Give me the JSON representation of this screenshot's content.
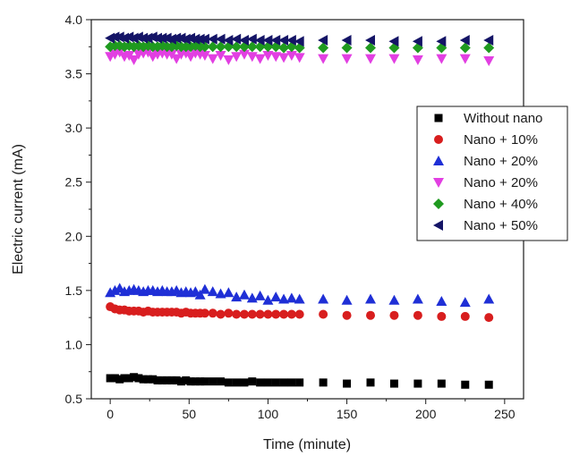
{
  "chart_data": {
    "type": "scatter",
    "xlabel": "Time (minute)",
    "ylabel": "Electric current (mA)",
    "xlim": [
      -12,
      262
    ],
    "ylim": [
      0.5,
      4.0
    ],
    "xticks": [
      0,
      50,
      100,
      150,
      200,
      250
    ],
    "yticks": [
      0.5,
      1.0,
      1.5,
      2.0,
      2.5,
      3.0,
      3.5,
      4.0
    ],
    "xtick_labels": [
      "0",
      "50",
      "100",
      "150",
      "200",
      "250"
    ],
    "ytick_labels": [
      "0.5",
      "1.0",
      "1.5",
      "2.0",
      "2.5",
      "3.0",
      "3.5",
      "4.0"
    ],
    "grid": false,
    "legend_position": "right",
    "series": [
      {
        "name": "Without nano",
        "marker": "square",
        "color": "#000000",
        "x": [
          0,
          3,
          6,
          9,
          12,
          15,
          18,
          21,
          24,
          27,
          30,
          33,
          36,
          39,
          42,
          45,
          48,
          51,
          54,
          57,
          60,
          65,
          70,
          75,
          80,
          85,
          90,
          95,
          100,
          105,
          110,
          115,
          120,
          135,
          150,
          165,
          180,
          195,
          210,
          225,
          240
        ],
        "y": [
          0.69,
          0.69,
          0.68,
          0.69,
          0.69,
          0.7,
          0.69,
          0.68,
          0.68,
          0.68,
          0.67,
          0.67,
          0.67,
          0.67,
          0.67,
          0.66,
          0.67,
          0.66,
          0.66,
          0.66,
          0.66,
          0.66,
          0.66,
          0.65,
          0.65,
          0.65,
          0.66,
          0.65,
          0.65,
          0.65,
          0.65,
          0.65,
          0.65,
          0.65,
          0.64,
          0.65,
          0.64,
          0.64,
          0.64,
          0.63,
          0.63
        ]
      },
      {
        "name": "Nano + 10%",
        "marker": "circle",
        "color": "#d81e1e",
        "x": [
          0,
          3,
          6,
          9,
          12,
          15,
          18,
          21,
          24,
          27,
          30,
          33,
          36,
          39,
          42,
          45,
          48,
          51,
          54,
          57,
          60,
          65,
          70,
          75,
          80,
          85,
          90,
          95,
          100,
          105,
          110,
          115,
          120,
          135,
          150,
          165,
          180,
          195,
          210,
          225,
          240
        ],
        "y": [
          1.35,
          1.33,
          1.32,
          1.32,
          1.31,
          1.31,
          1.31,
          1.3,
          1.31,
          1.3,
          1.3,
          1.3,
          1.3,
          1.3,
          1.3,
          1.29,
          1.3,
          1.29,
          1.29,
          1.29,
          1.29,
          1.29,
          1.28,
          1.29,
          1.28,
          1.28,
          1.28,
          1.28,
          1.28,
          1.28,
          1.28,
          1.28,
          1.28,
          1.28,
          1.27,
          1.27,
          1.27,
          1.27,
          1.26,
          1.26,
          1.25
        ]
      },
      {
        "name": "Nano + 20%",
        "marker": "triangle-up",
        "color": "#1f2fd6",
        "x": [
          0,
          3,
          6,
          9,
          12,
          15,
          18,
          21,
          24,
          27,
          30,
          33,
          36,
          39,
          42,
          45,
          48,
          51,
          54,
          57,
          60,
          65,
          70,
          75,
          80,
          85,
          90,
          95,
          100,
          105,
          110,
          115,
          120,
          135,
          150,
          165,
          180,
          195,
          210,
          225,
          240
        ],
        "y": [
          1.48,
          1.5,
          1.52,
          1.49,
          1.5,
          1.51,
          1.5,
          1.49,
          1.5,
          1.5,
          1.49,
          1.5,
          1.49,
          1.49,
          1.5,
          1.48,
          1.49,
          1.48,
          1.49,
          1.46,
          1.51,
          1.49,
          1.47,
          1.48,
          1.44,
          1.46,
          1.43,
          1.45,
          1.41,
          1.44,
          1.42,
          1.43,
          1.42,
          1.42,
          1.41,
          1.42,
          1.41,
          1.42,
          1.4,
          1.39,
          1.42
        ]
      },
      {
        "name": "Nano + 20%",
        "marker": "triangle-down",
        "color": "#e23fe2",
        "x": [
          0,
          3,
          6,
          9,
          12,
          15,
          18,
          21,
          24,
          27,
          30,
          33,
          36,
          39,
          42,
          45,
          48,
          51,
          54,
          57,
          60,
          65,
          70,
          75,
          80,
          85,
          90,
          95,
          100,
          105,
          110,
          115,
          120,
          135,
          150,
          165,
          180,
          195,
          210,
          225,
          240
        ],
        "y": [
          3.66,
          3.68,
          3.7,
          3.66,
          3.67,
          3.63,
          3.68,
          3.69,
          3.7,
          3.66,
          3.68,
          3.69,
          3.68,
          3.68,
          3.64,
          3.68,
          3.69,
          3.66,
          3.69,
          3.68,
          3.67,
          3.64,
          3.67,
          3.63,
          3.66,
          3.68,
          3.66,
          3.64,
          3.67,
          3.66,
          3.65,
          3.67,
          3.65,
          3.64,
          3.64,
          3.64,
          3.64,
          3.63,
          3.64,
          3.64,
          3.62
        ]
      },
      {
        "name": "Nano + 40%",
        "marker": "diamond",
        "color": "#1f9a1f",
        "x": [
          0,
          3,
          6,
          9,
          12,
          15,
          18,
          21,
          24,
          27,
          30,
          33,
          36,
          39,
          42,
          45,
          48,
          51,
          54,
          57,
          60,
          65,
          70,
          75,
          80,
          85,
          90,
          95,
          100,
          105,
          110,
          115,
          120,
          135,
          150,
          165,
          180,
          195,
          210,
          225,
          240
        ],
        "y": [
          3.75,
          3.76,
          3.76,
          3.75,
          3.76,
          3.75,
          3.76,
          3.75,
          3.76,
          3.75,
          3.75,
          3.76,
          3.75,
          3.75,
          3.76,
          3.75,
          3.75,
          3.75,
          3.76,
          3.75,
          3.75,
          3.75,
          3.75,
          3.75,
          3.75,
          3.75,
          3.75,
          3.75,
          3.75,
          3.75,
          3.74,
          3.75,
          3.74,
          3.74,
          3.74,
          3.74,
          3.74,
          3.74,
          3.74,
          3.74,
          3.74
        ]
      },
      {
        "name": "Nano + 50%",
        "marker": "triangle-left",
        "color": "#141466",
        "x": [
          0,
          3,
          6,
          9,
          12,
          15,
          18,
          21,
          24,
          27,
          30,
          33,
          36,
          39,
          42,
          45,
          48,
          51,
          54,
          57,
          60,
          65,
          70,
          75,
          80,
          85,
          90,
          95,
          100,
          105,
          110,
          115,
          120,
          135,
          150,
          165,
          180,
          195,
          210,
          225,
          240
        ],
        "y": [
          3.83,
          3.84,
          3.84,
          3.83,
          3.84,
          3.83,
          3.84,
          3.83,
          3.83,
          3.84,
          3.83,
          3.83,
          3.83,
          3.82,
          3.83,
          3.83,
          3.82,
          3.83,
          3.82,
          3.82,
          3.82,
          3.82,
          3.82,
          3.81,
          3.82,
          3.81,
          3.82,
          3.81,
          3.81,
          3.81,
          3.81,
          3.81,
          3.8,
          3.81,
          3.81,
          3.81,
          3.8,
          3.8,
          3.8,
          3.81,
          3.81
        ]
      }
    ]
  }
}
